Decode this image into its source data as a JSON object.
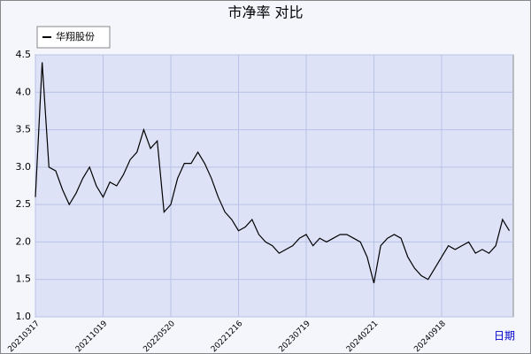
{
  "chart_data": {
    "type": "line",
    "title": "市净率 对比",
    "x_label": "日期",
    "categories": [
      "20210317",
      null,
      null,
      null,
      null,
      null,
      null,
      null,
      null,
      null,
      "20211019",
      null,
      null,
      null,
      null,
      null,
      null,
      null,
      null,
      null,
      "20220520",
      null,
      null,
      null,
      null,
      null,
      null,
      null,
      null,
      null,
      "20221216",
      null,
      null,
      null,
      null,
      null,
      null,
      null,
      null,
      null,
      "20230719",
      null,
      null,
      null,
      null,
      null,
      null,
      null,
      null,
      null,
      "20240221",
      null,
      null,
      null,
      null,
      null,
      null,
      null,
      null,
      null,
      "20240918",
      null,
      null,
      null,
      null,
      null,
      null,
      null,
      null,
      null,
      null
    ],
    "series": [
      {
        "name": "华翔股份",
        "color": "#000000",
        "values": [
          2.6,
          4.4,
          3.0,
          2.95,
          2.7,
          2.5,
          2.65,
          2.85,
          3.0,
          2.75,
          2.6,
          2.8,
          2.75,
          2.9,
          3.1,
          3.2,
          3.5,
          3.25,
          3.35,
          2.4,
          2.5,
          2.85,
          3.05,
          3.05,
          3.2,
          3.05,
          2.85,
          2.6,
          2.4,
          2.3,
          2.15,
          2.2,
          2.3,
          2.1,
          2.0,
          1.95,
          1.85,
          1.9,
          1.95,
          2.05,
          2.1,
          1.95,
          2.05,
          2.0,
          2.05,
          2.1,
          2.1,
          2.05,
          2.0,
          1.8,
          1.45,
          1.95,
          2.05,
          2.1,
          2.05,
          1.8,
          1.65,
          1.55,
          1.5,
          1.65,
          1.8,
          1.95,
          1.9,
          1.95,
          2.0,
          1.85,
          1.9,
          1.85,
          1.95,
          2.3,
          2.15
        ]
      }
    ],
    "ylim": [
      1,
      4.5
    ],
    "yticks": [
      {
        "value": 1,
        "label": "1.0"
      },
      1.5,
      {
        "value": 2,
        "label": "2.0"
      },
      2.5,
      {
        "value": 3,
        "label": "3.0"
      },
      3.5,
      {
        "value": 4,
        "label": "4.0"
      },
      4.5
    ],
    "grid": true
  }
}
